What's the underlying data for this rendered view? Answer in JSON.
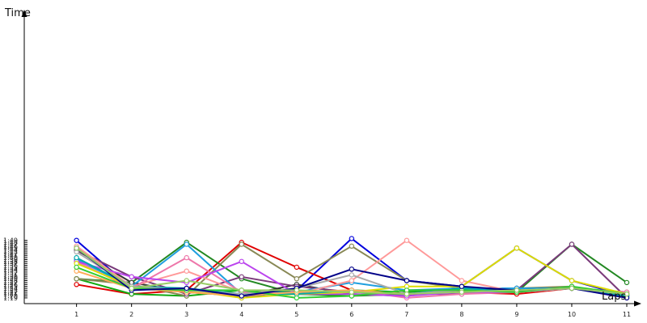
{
  "chart_data": {
    "type": "line",
    "xlabel": "Laps",
    "ylabel": "Time",
    "x": [
      1,
      2,
      3,
      4,
      5,
      6,
      7,
      8,
      9,
      10,
      11
    ],
    "xlim": [
      0.05,
      11
    ],
    "ylim_seconds": [
      76,
      232
    ],
    "y_tick_labels": [
      "1:19",
      "1:20",
      "1:21",
      "1:22",
      "1:23",
      "1:24",
      "1:25",
      "1:26",
      "1:27",
      "1:28",
      "1:29",
      "1:30",
      "1:31",
      "1:32",
      "1:33",
      "1:34",
      "1:35",
      "1:36",
      "1:37",
      "1:38",
      "1:39",
      "1:40",
      "1:41",
      "1:42",
      "1:43",
      "1:44",
      "1:45",
      "1:46",
      "1:47",
      "1:48",
      "1:49"
    ],
    "grid": false,
    "legend": "none",
    "series": [
      {
        "color": "#0000dd",
        "values": [
          "1:49",
          "1:24",
          "1:24",
          "1:19",
          "1:23",
          "1:50",
          "1:28",
          "1:25",
          "1:45",
          "1:28",
          "1:20"
        ]
      },
      {
        "color": "#e00000",
        "values": [
          "1:26",
          "1:21",
          "1:23",
          "1:48",
          "1:35",
          "1:23",
          "1:21",
          "1:22",
          "1:21",
          "1:24",
          "1:21"
        ]
      },
      {
        "color": "#11aa11",
        "values": [
          "1:29",
          "1:21",
          "1:20",
          "1:23",
          "1:22",
          "1:23",
          "1:22",
          "1:24",
          "1:22",
          "1:24",
          "1:22"
        ]
      },
      {
        "color": "#228822",
        "values": [
          "1:29",
          "1:27",
          "1:48",
          "1:29",
          "1:21",
          "1:20",
          "1:21",
          "1:22",
          "1:22",
          "1:47",
          "1:27"
        ]
      },
      {
        "color": "#888855",
        "values": [
          "1:29",
          "1:26",
          "1:20",
          "1:47",
          "1:29",
          "1:46",
          "1:28",
          "1:24",
          "1:24",
          "1:25",
          "1:20"
        ]
      },
      {
        "color": "#333333",
        "values": [
          "1:44",
          "1:27",
          "1:22",
          "1:20",
          "1:26",
          "1:21",
          "1:20",
          "1:23",
          "1:24",
          "1:24",
          "1:20"
        ]
      },
      {
        "color": "#7a3a7a",
        "values": [
          "1:44",
          "1:30",
          "1:21",
          "1:30",
          "1:25",
          "1:22",
          "1:21",
          "1:21",
          "1:23",
          "1:47",
          "1:19"
        ]
      },
      {
        "color": "#1f9fdf",
        "values": [
          "1:39",
          "1:25",
          "1:47",
          "1:21",
          "1:22",
          "1:27",
          "1:23",
          "1:24",
          "1:24",
          "1:24",
          "1:20"
        ]
      },
      {
        "color": "#ff9999",
        "values": [
          "1:46",
          "1:25",
          "1:33",
          "1:22",
          "1:21",
          "1:28",
          "1:49",
          "1:28",
          "1:22",
          "1:24",
          "1:22"
        ]
      },
      {
        "color": "#ee77aa",
        "values": [
          "1:38",
          "1:24",
          "1:40",
          "1:22",
          "1:21",
          "1:23",
          "1:19",
          "1:21",
          "1:22",
          "1:24",
          "1:22"
        ]
      },
      {
        "color": "#bb44ee",
        "values": [
          "1:38",
          "1:30",
          "1:27",
          "1:38",
          "1:21",
          "1:21",
          "1:20",
          "1:22",
          "1:22",
          "1:24",
          "1:20"
        ]
      },
      {
        "color": "#dddd00",
        "values": [
          "1:37",
          "1:25",
          "1:23",
          "1:19",
          "1:21",
          "1:22",
          "1:25",
          "1:25",
          "1:45",
          "1:28",
          "1:21"
        ]
      },
      {
        "color": "#00aaaa",
        "values": [
          "1:40",
          "1:25",
          "1:24",
          "1:21",
          "1:21",
          "1:23",
          "1:21",
          "1:24",
          "1:22",
          "1:24",
          "1:20"
        ]
      },
      {
        "color": "#ffaa55",
        "values": [
          "1:33",
          "1:24",
          "1:22",
          "1:20",
          "1:22",
          "1:23",
          "1:21",
          "1:23",
          "1:22",
          "1:24",
          "1:21"
        ]
      },
      {
        "color": "#aaaaaa",
        "values": [
          "1:43",
          "1:25",
          "1:23",
          "1:21",
          "1:24",
          "1:31",
          "1:21",
          "1:23",
          "1:22",
          "1:24",
          "1:21"
        ]
      },
      {
        "color": "#33cc33",
        "values": [
          "1:35",
          "1:24",
          "1:23",
          "1:23",
          "1:19",
          "1:20",
          "1:23",
          "1:23",
          "1:22",
          "1:25",
          "1:21"
        ]
      },
      {
        "color": "#000088",
        "values": [
          "1:45",
          "1:23",
          "1:24",
          "1:20",
          "1:24",
          "1:34",
          "1:28",
          "1:25",
          "1:23",
          "1:24",
          "1:19"
        ]
      },
      {
        "color": "#99cc66",
        "values": [
          "1:45",
          "1:24",
          "1:28",
          "1:23",
          "1:23",
          "1:22",
          "1:21",
          "1:22",
          "1:23",
          "1:24",
          "1:21"
        ]
      }
    ]
  }
}
